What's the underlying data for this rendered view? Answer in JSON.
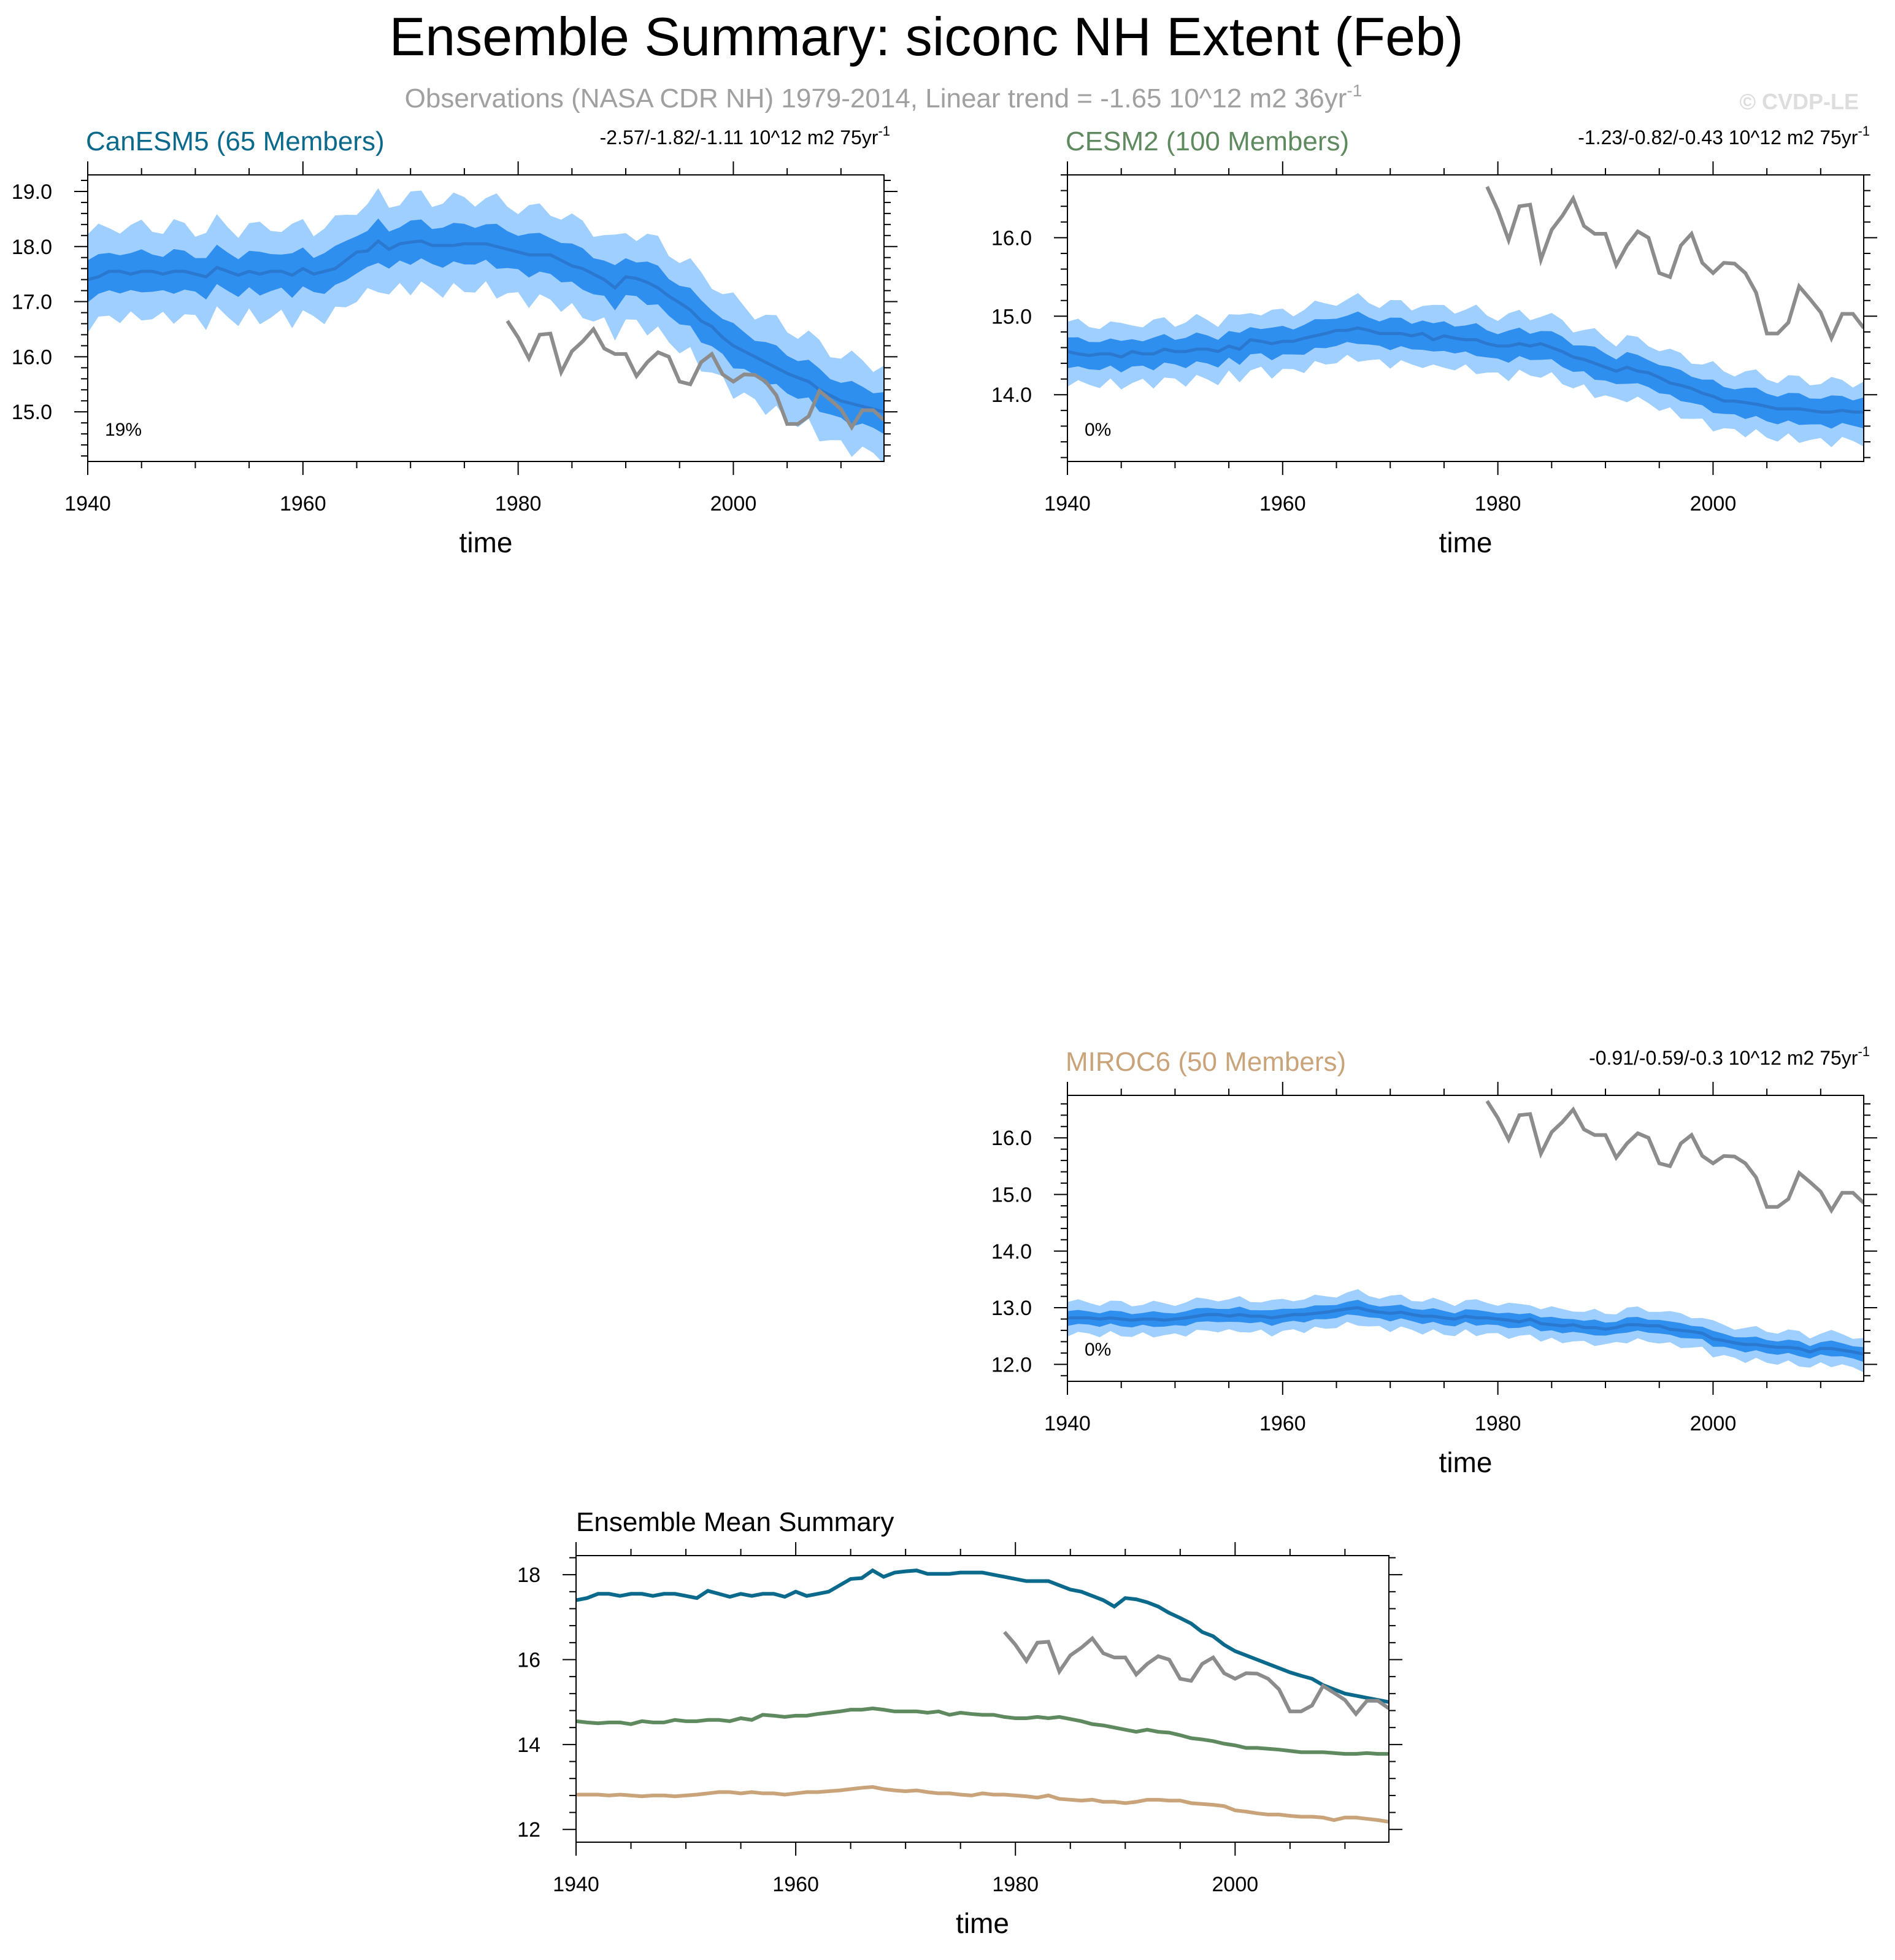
{
  "title": "Ensemble Summary: siconc NH Extent (Feb)",
  "subtitle": "Observations (NASA CDR NH) 1979-2014, Linear trend = -1.65 10^12 m2 36yr",
  "subtitle_sup": "-1",
  "copyright": "© CVDP-LE",
  "xlabel": "time",
  "colors": {
    "canesm5": "#0b6a8c",
    "cesm2": "#5f8a5f",
    "miroc6": "#c9a47a",
    "obs": "#8c8c8c",
    "band_outer": "#9fcfff",
    "band_inner": "#2f8fef",
    "mean_line": "#2a78d0"
  },
  "obs": {
    "name": "Observations (NASA CDR NH)",
    "x": [
      1979,
      1980,
      1981,
      1982,
      1983,
      1984,
      1985,
      1986,
      1987,
      1988,
      1989,
      1990,
      1991,
      1992,
      1993,
      1994,
      1995,
      1996,
      1997,
      1998,
      1999,
      2000,
      2001,
      2002,
      2003,
      2004,
      2005,
      2006,
      2007,
      2008,
      2009,
      2010,
      2011,
      2012,
      2013,
      2014
    ],
    "y": [
      16.65,
      16.35,
      15.97,
      16.4,
      16.42,
      15.72,
      16.1,
      16.28,
      16.5,
      16.15,
      16.05,
      16.05,
      15.65,
      15.9,
      16.08,
      16.0,
      15.55,
      15.5,
      15.9,
      16.05,
      15.68,
      15.55,
      15.68,
      15.67,
      15.55,
      15.3,
      14.78,
      14.78,
      14.92,
      15.38,
      15.22,
      15.05,
      14.72,
      15.03,
      15.03,
      14.85
    ]
  },
  "chart_data": [
    {
      "type": "line",
      "panel": "canesm5",
      "title": "CanESM5 (65 Members)",
      "trend_label": "-2.57/-1.82/-1.11 10^12 m2 75yr",
      "trend_sup": "-1",
      "percent_label": "19%",
      "xlabel": "time",
      "xlim": [
        1940,
        2014
      ],
      "ylim": [
        14.1,
        19.3
      ],
      "xticks": [
        1940,
        1960,
        1980,
        2000
      ],
      "yticks": [
        15.0,
        16.0,
        17.0,
        18.0,
        19.0
      ],
      "ytick_labels": [
        "15.0",
        "16.0",
        "17.0",
        "18.0",
        "19.0"
      ],
      "x_start": 1940,
      "mean": [
        17.4,
        17.45,
        17.55,
        17.55,
        17.5,
        17.55,
        17.55,
        17.5,
        17.55,
        17.55,
        17.5,
        17.45,
        17.62,
        17.55,
        17.48,
        17.55,
        17.5,
        17.55,
        17.55,
        17.48,
        17.6,
        17.5,
        17.55,
        17.6,
        17.75,
        17.9,
        17.92,
        18.1,
        17.95,
        18.05,
        18.08,
        18.1,
        18.02,
        18.02,
        18.02,
        18.05,
        18.05,
        18.05,
        18.0,
        17.95,
        17.9,
        17.85,
        17.85,
        17.85,
        17.75,
        17.65,
        17.6,
        17.5,
        17.4,
        17.25,
        17.45,
        17.42,
        17.35,
        17.25,
        17.1,
        16.98,
        16.85,
        16.65,
        16.55,
        16.35,
        16.2,
        16.1,
        16.0,
        15.9,
        15.8,
        15.7,
        15.62,
        15.55,
        15.4,
        15.3,
        15.2,
        15.15,
        15.1,
        15.05,
        15.0
      ],
      "inner_halfwidth": 0.35,
      "outer_halfwidth": 0.82
    },
    {
      "type": "line",
      "panel": "cesm2",
      "title": "CESM2 (100 Members)",
      "trend_label": "-1.23/-0.82/-0.43 10^12 m2 75yr",
      "trend_sup": "-1",
      "percent_label": "0%",
      "xlabel": "time",
      "xlim": [
        1940,
        2014
      ],
      "ylim": [
        13.15,
        16.8
      ],
      "xticks": [
        1940,
        1960,
        1980,
        2000
      ],
      "yticks": [
        14.0,
        15.0,
        16.0
      ],
      "ytick_labels": [
        "14.0",
        "15.0",
        "16.0"
      ],
      "x_start": 1940,
      "mean": [
        14.55,
        14.52,
        14.5,
        14.52,
        14.52,
        14.48,
        14.55,
        14.52,
        14.52,
        14.58,
        14.55,
        14.55,
        14.58,
        14.58,
        14.55,
        14.62,
        14.58,
        14.7,
        14.68,
        14.65,
        14.68,
        14.68,
        14.72,
        14.75,
        14.78,
        14.82,
        14.82,
        14.85,
        14.82,
        14.78,
        14.78,
        14.78,
        14.75,
        14.78,
        14.7,
        14.75,
        14.72,
        14.7,
        14.7,
        14.65,
        14.62,
        14.62,
        14.65,
        14.62,
        14.65,
        14.6,
        14.55,
        14.48,
        14.45,
        14.4,
        14.35,
        14.3,
        14.35,
        14.3,
        14.28,
        14.22,
        14.15,
        14.12,
        14.08,
        14.02,
        13.98,
        13.92,
        13.92,
        13.9,
        13.88,
        13.85,
        13.82,
        13.82,
        13.82,
        13.8,
        13.78,
        13.78,
        13.8,
        13.78,
        13.78
      ],
      "inner_halfwidth": 0.18,
      "outer_halfwidth": 0.38
    },
    {
      "type": "line",
      "panel": "miroc6",
      "title": "MIROC6 (50 Members)",
      "trend_label": "-0.91/-0.59/-0.3 10^12 m2 75yr",
      "trend_sup": "-1",
      "percent_label": "0%",
      "xlabel": "time",
      "xlim": [
        1940,
        2014
      ],
      "ylim": [
        11.7,
        16.75
      ],
      "xticks": [
        1940,
        1960,
        1980,
        2000
      ],
      "yticks": [
        12.0,
        13.0,
        14.0,
        15.0,
        16.0
      ],
      "ytick_labels": [
        "12.0",
        "13.0",
        "14.0",
        "15.0",
        "16.0"
      ],
      "x_start": 1940,
      "mean": [
        12.82,
        12.82,
        12.82,
        12.8,
        12.82,
        12.8,
        12.78,
        12.8,
        12.8,
        12.78,
        12.8,
        12.82,
        12.85,
        12.88,
        12.88,
        12.85,
        12.88,
        12.85,
        12.85,
        12.82,
        12.85,
        12.88,
        12.88,
        12.9,
        12.92,
        12.95,
        12.98,
        13.0,
        12.95,
        12.92,
        12.9,
        12.92,
        12.88,
        12.85,
        12.85,
        12.82,
        12.8,
        12.85,
        12.82,
        12.82,
        12.8,
        12.78,
        12.75,
        12.8,
        12.72,
        12.7,
        12.68,
        12.7,
        12.65,
        12.65,
        12.62,
        12.65,
        12.7,
        12.7,
        12.68,
        12.68,
        12.62,
        12.6,
        12.58,
        12.55,
        12.45,
        12.42,
        12.38,
        12.35,
        12.35,
        12.32,
        12.3,
        12.3,
        12.28,
        12.22,
        12.28,
        12.28,
        12.25,
        12.22,
        12.18
      ],
      "inner_halfwidth": 0.12,
      "outer_halfwidth": 0.28
    },
    {
      "type": "line",
      "panel": "summary",
      "title": "Ensemble Mean Summary",
      "xlabel": "time",
      "xlim": [
        1940,
        2014
      ],
      "ylim": [
        11.7,
        18.45
      ],
      "xticks": [
        1940,
        1960,
        1980,
        2000
      ],
      "yticks": [
        12,
        14,
        16,
        18
      ],
      "ytick_labels": [
        "12",
        "14",
        "16",
        "18"
      ],
      "series": [
        "canesm5",
        "cesm2",
        "miroc6",
        "obs"
      ]
    }
  ]
}
